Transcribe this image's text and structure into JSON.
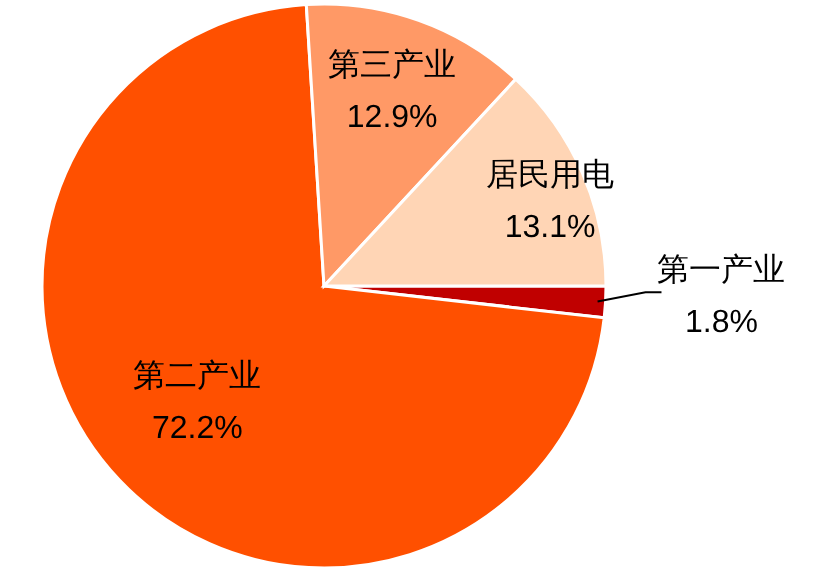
{
  "chart_data": {
    "type": "pie",
    "categories": [
      "第一产业",
      "第二产业",
      "第三产业",
      "居民用电"
    ],
    "values": [
      1.8,
      72.2,
      12.9,
      13.1
    ],
    "value_labels": [
      "1.8%",
      "72.2%",
      "12.9%",
      "13.1%"
    ],
    "colors": [
      "#c00000",
      "#ff5000",
      "#ff9966",
      "#ffd5b5"
    ],
    "legend": false
  }
}
